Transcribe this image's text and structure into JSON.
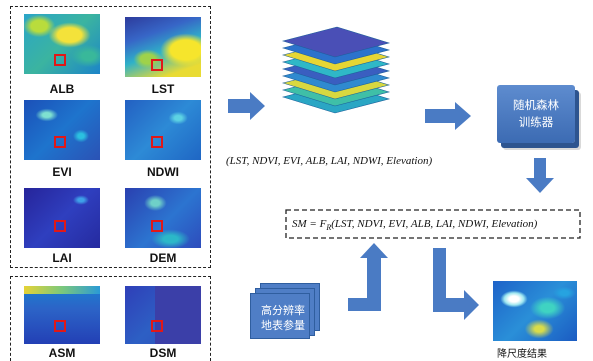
{
  "inputs": {
    "labels": [
      "ALB",
      "LST",
      "EVI",
      "NDWI",
      "LAI",
      "DEM"
    ],
    "soil_labels": [
      "ASM",
      "DSM"
    ]
  },
  "features_formula": "(LST, NDVI, EVI, ALB, LAI, NDWI, Elevation)",
  "model": {
    "line1": "随机森林",
    "line2": "训练器"
  },
  "model_formula": {
    "lhs": "SM = F",
    "subscript": "R",
    "rhs": "(LST, NDVI, EVI, ALB, LAI, NDWI, Elevation)"
  },
  "hires": {
    "line1": "高分辨率",
    "line2": "地表参量"
  },
  "result_label": "降尺度结果",
  "colors": {
    "arrow": "#4a7bc4",
    "marker": "#e01818"
  }
}
